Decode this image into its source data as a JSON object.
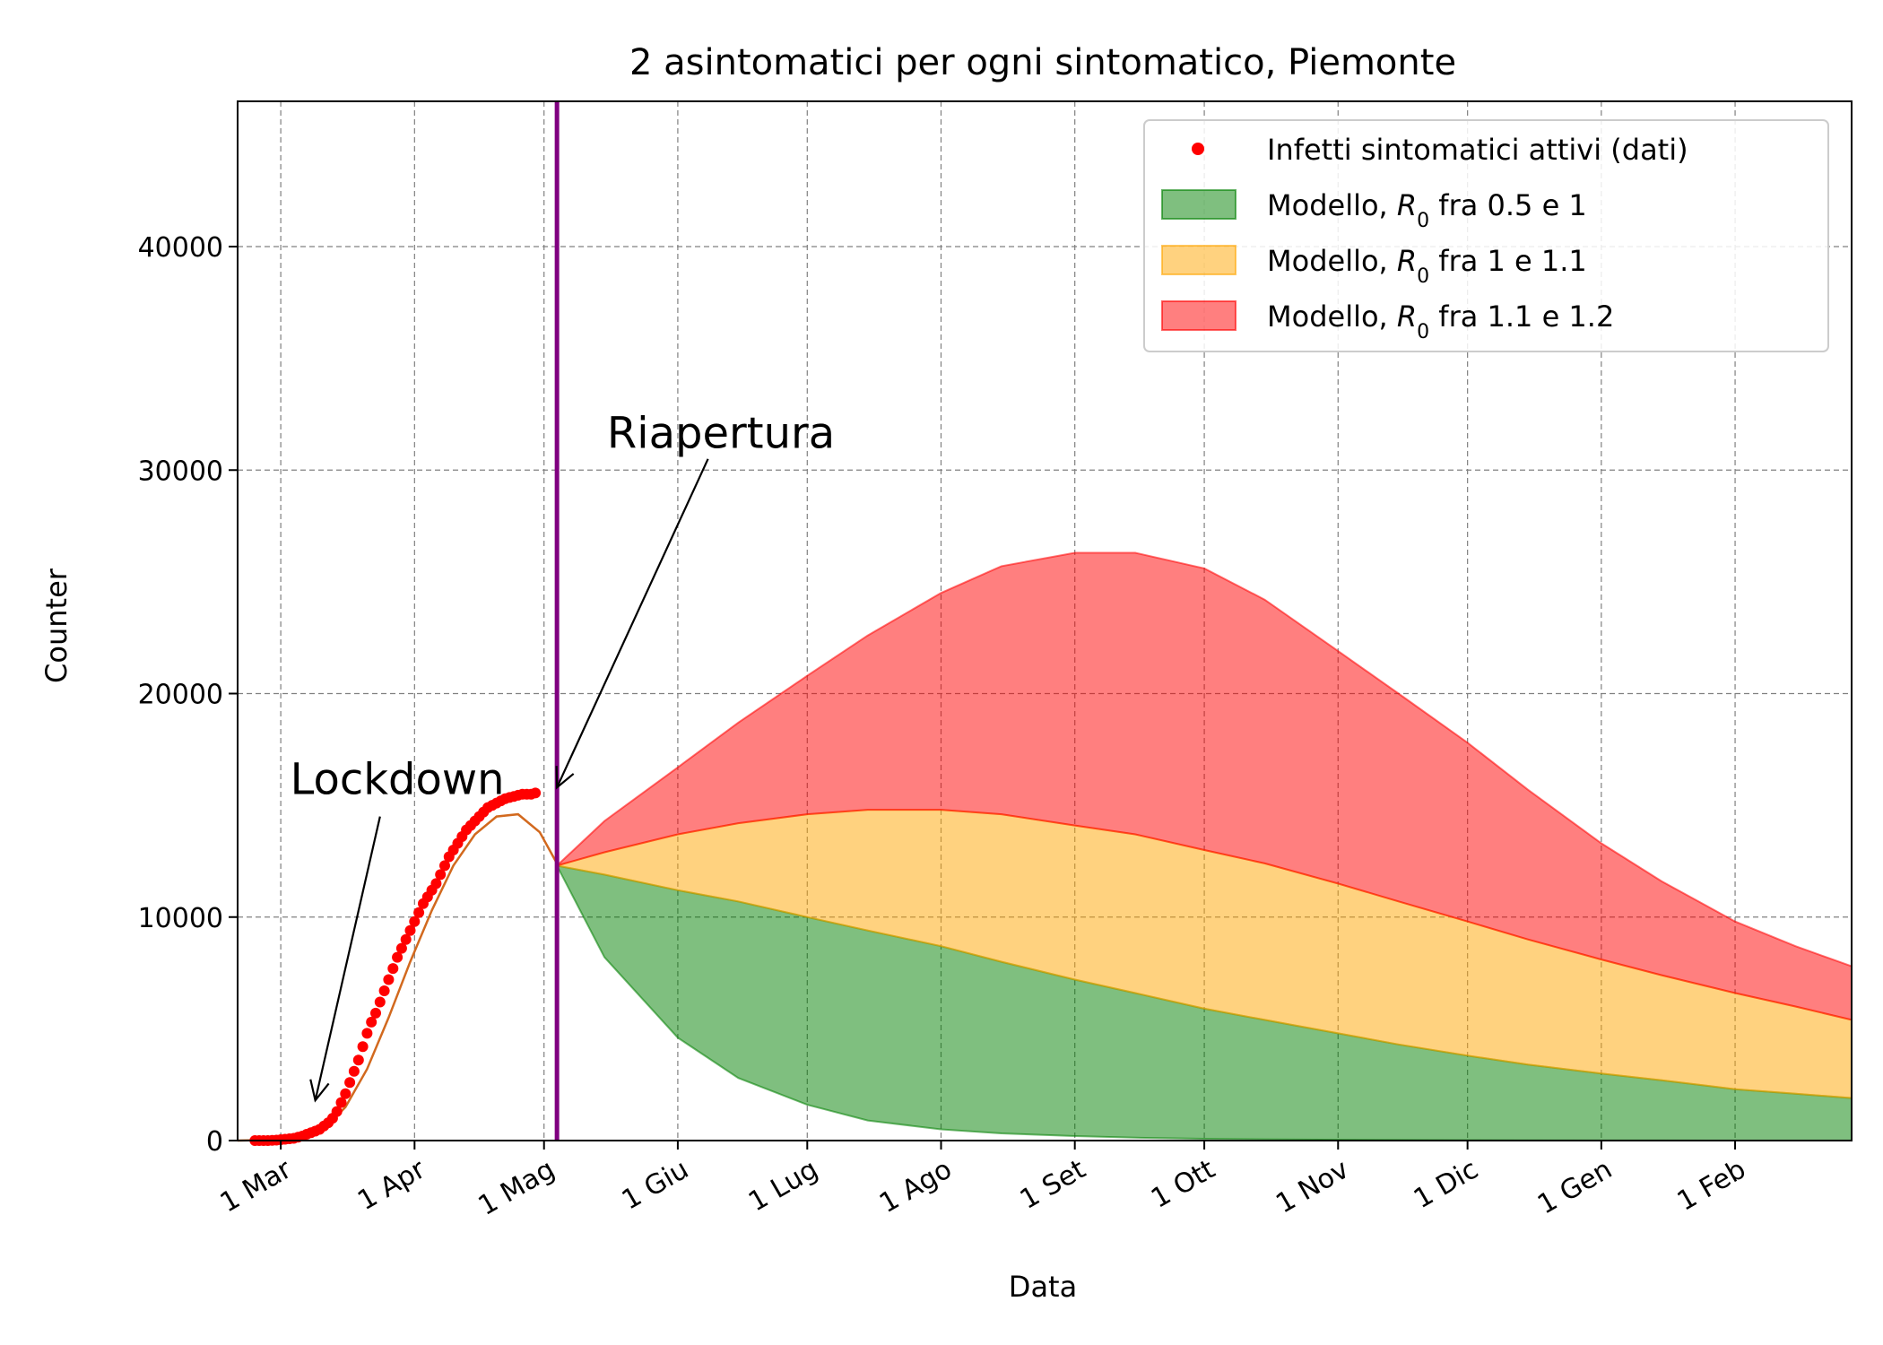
{
  "chart_data": {
    "type": "area",
    "title": "2 asintomatici per ogni sintomatico, Piemonte",
    "xlabel": "Data",
    "ylabel": "Counter",
    "ylim": [
      0,
      46500
    ],
    "xlim": [
      "2020-02-20",
      "2021-02-28"
    ],
    "yticks": [
      0,
      10000,
      20000,
      30000,
      40000
    ],
    "xticks": [
      {
        "date": "2020-03-01",
        "label": "1 Mar"
      },
      {
        "date": "2020-04-01",
        "label": "1 Apr"
      },
      {
        "date": "2020-05-01",
        "label": "1 Mag"
      },
      {
        "date": "2020-06-01",
        "label": "1 Giu"
      },
      {
        "date": "2020-07-01",
        "label": "1 Lug"
      },
      {
        "date": "2020-08-01",
        "label": "1 Ago"
      },
      {
        "date": "2020-09-01",
        "label": "1 Set"
      },
      {
        "date": "2020-10-01",
        "label": "1 Ott"
      },
      {
        "date": "2020-11-01",
        "label": "1 Nov"
      },
      {
        "date": "2020-12-01",
        "label": "1 Dic"
      },
      {
        "date": "2021-01-01",
        "label": "1 Gen"
      },
      {
        "date": "2021-02-01",
        "label": "1 Feb"
      }
    ],
    "grid": true,
    "legend_position": "top-right",
    "reopening_date": "2020-05-04",
    "colors": {
      "data_points": "#ff0000",
      "fit_line": "#d2691e",
      "reopening_line": "#800080",
      "green": "#008000",
      "orange": "#ffa500",
      "red": "#ff0000"
    },
    "annotations": [
      {
        "text": "Lockdown",
        "text_at": [
          "2020-03-28",
          15500
        ],
        "arrow_from": [
          "2020-03-24",
          14500
        ],
        "arrow_to": [
          "2020-03-09",
          1800
        ]
      },
      {
        "text": "Riapertura",
        "text_at": [
          "2020-06-11",
          31000
        ],
        "arrow_from": [
          "2020-06-08",
          30500
        ],
        "arrow_to": [
          "2020-05-04",
          15800
        ]
      }
    ],
    "series": [
      {
        "name": "Infetti sintomatici attivi (dati)",
        "kind": "points",
        "x": [
          "2020-02-24",
          "2020-02-25",
          "2020-02-26",
          "2020-02-27",
          "2020-02-28",
          "2020-02-29",
          "2020-03-01",
          "2020-03-02",
          "2020-03-03",
          "2020-03-04",
          "2020-03-05",
          "2020-03-06",
          "2020-03-07",
          "2020-03-08",
          "2020-03-09",
          "2020-03-10",
          "2020-03-11",
          "2020-03-12",
          "2020-03-13",
          "2020-03-14",
          "2020-03-15",
          "2020-03-16",
          "2020-03-17",
          "2020-03-18",
          "2020-03-19",
          "2020-03-20",
          "2020-03-21",
          "2020-03-22",
          "2020-03-23",
          "2020-03-24",
          "2020-03-25",
          "2020-03-26",
          "2020-03-27",
          "2020-03-28",
          "2020-03-29",
          "2020-03-30",
          "2020-03-31",
          "2020-04-01",
          "2020-04-02",
          "2020-04-03",
          "2020-04-04",
          "2020-04-05",
          "2020-04-06",
          "2020-04-07",
          "2020-04-08",
          "2020-04-09",
          "2020-04-10",
          "2020-04-11",
          "2020-04-12",
          "2020-04-13",
          "2020-04-14",
          "2020-04-15",
          "2020-04-16",
          "2020-04-17",
          "2020-04-18",
          "2020-04-19",
          "2020-04-20",
          "2020-04-21",
          "2020-04-22",
          "2020-04-23",
          "2020-04-24",
          "2020-04-25",
          "2020-04-26",
          "2020-04-27",
          "2020-04-28",
          "2020-04-29"
        ],
        "y": [
          0,
          0,
          0,
          0,
          10,
          20,
          40,
          60,
          80,
          100,
          150,
          200,
          280,
          350,
          420,
          500,
          650,
          800,
          1000,
          1300,
          1700,
          2100,
          2600,
          3100,
          3600,
          4200,
          4800,
          5300,
          5700,
          6200,
          6700,
          7200,
          7700,
          8200,
          8600,
          9000,
          9400,
          9800,
          10200,
          10600,
          10900,
          11200,
          11500,
          11900,
          12300,
          12700,
          13000,
          13300,
          13600,
          13900,
          14100,
          14300,
          14500,
          14700,
          14900,
          15000,
          15100,
          15200,
          15300,
          15350,
          15400,
          15450,
          15500,
          15500,
          15500,
          15550
        ]
      },
      {
        "name": "",
        "kind": "line",
        "x": [
          "2020-02-20",
          "2020-03-01",
          "2020-03-06",
          "2020-03-11",
          "2020-03-16",
          "2020-03-21",
          "2020-03-26",
          "2020-03-31",
          "2020-04-05",
          "2020-04-10",
          "2020-04-15",
          "2020-04-20",
          "2020-04-25",
          "2020-04-30",
          "2020-05-04"
        ],
        "y": [
          0,
          40,
          150,
          500,
          1500,
          3200,
          5500,
          8000,
          10300,
          12300,
          13700,
          14500,
          14600,
          13800,
          12400
        ]
      },
      {
        "name": "Modello, $R_0$ fra 0.5 e 1",
        "kind": "band",
        "color": "green",
        "x": [
          "2020-05-04",
          "2020-05-15",
          "2020-06-01",
          "2020-06-15",
          "2020-07-01",
          "2020-07-15",
          "2020-08-01",
          "2020-08-15",
          "2020-09-01",
          "2020-09-15",
          "2020-10-01",
          "2020-10-15",
          "2020-11-01",
          "2020-11-15",
          "2020-12-01",
          "2020-12-15",
          "2021-01-01",
          "2021-01-15",
          "2021-02-01",
          "2021-02-15",
          "2021-02-28"
        ],
        "lower": [
          12300,
          8200,
          4600,
          2800,
          1600,
          900,
          500,
          320,
          200,
          130,
          80,
          55,
          35,
          25,
          15,
          10,
          6,
          4,
          2,
          1,
          1
        ],
        "upper": [
          12300,
          11900,
          11200,
          10700,
          10000,
          9400,
          8700,
          8000,
          7200,
          6600,
          5900,
          5400,
          4800,
          4300,
          3800,
          3400,
          3000,
          2700,
          2300,
          2100,
          1900
        ]
      },
      {
        "name": "Modello, $R_0$ fra 1 e 1.1",
        "kind": "band",
        "color": "orange",
        "x": [
          "2020-05-04",
          "2020-05-15",
          "2020-06-01",
          "2020-06-15",
          "2020-07-01",
          "2020-07-15",
          "2020-08-01",
          "2020-08-15",
          "2020-09-01",
          "2020-09-15",
          "2020-10-01",
          "2020-10-15",
          "2020-11-01",
          "2020-11-15",
          "2020-12-01",
          "2020-12-15",
          "2021-01-01",
          "2021-01-15",
          "2021-02-01",
          "2021-02-15",
          "2021-02-28"
        ],
        "lower": [
          12300,
          11900,
          11200,
          10700,
          10000,
          9400,
          8700,
          8000,
          7200,
          6600,
          5900,
          5400,
          4800,
          4300,
          3800,
          3400,
          3000,
          2700,
          2300,
          2100,
          1900
        ],
        "upper": [
          12300,
          12900,
          13700,
          14200,
          14600,
          14800,
          14800,
          14600,
          14100,
          13700,
          13000,
          12400,
          11500,
          10700,
          9800,
          9000,
          8100,
          7400,
          6600,
          6000,
          5400
        ]
      },
      {
        "name": "Modello, $R_0$ fra 1.1 e 1.2",
        "kind": "band",
        "color": "red",
        "x": [
          "2020-05-04",
          "2020-05-15",
          "2020-06-01",
          "2020-06-15",
          "2020-07-01",
          "2020-07-15",
          "2020-08-01",
          "2020-08-15",
          "2020-09-01",
          "2020-09-15",
          "2020-10-01",
          "2020-10-15",
          "2020-11-01",
          "2020-11-15",
          "2020-12-01",
          "2020-12-15",
          "2021-01-01",
          "2021-01-15",
          "2021-02-01",
          "2021-02-15",
          "2021-02-28"
        ],
        "lower": [
          12300,
          12900,
          13700,
          14200,
          14600,
          14800,
          14800,
          14600,
          14100,
          13700,
          13000,
          12400,
          11500,
          10700,
          9800,
          9000,
          8100,
          7400,
          6600,
          6000,
          5400
        ],
        "upper": [
          12300,
          14300,
          16700,
          18700,
          20800,
          22600,
          24500,
          25700,
          26300,
          26300,
          25600,
          24200,
          21900,
          20000,
          17800,
          15700,
          13300,
          11600,
          9800,
          8700,
          7800
        ]
      }
    ]
  }
}
